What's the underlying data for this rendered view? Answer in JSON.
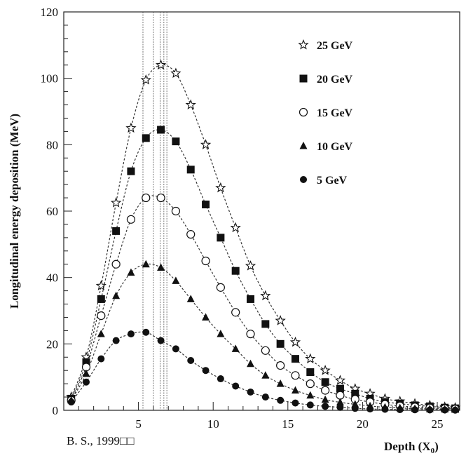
{
  "chart_data": {
    "type": "scatter",
    "title": "",
    "xlabel_main": "Depth (X",
    "xlabel_sub": "0",
    "xlabel_close": ")",
    "ylabel": "Longitudinal energy deposition (MeV)",
    "xlim": [
      0,
      26.5
    ],
    "ylim": [
      0,
      120
    ],
    "xticks": [
      5,
      10,
      15,
      20,
      25
    ],
    "yticks": [
      0,
      20,
      40,
      60,
      80,
      100,
      120
    ],
    "grid": false,
    "legend_position": "top-right",
    "credit": "B. S., 1999□□",
    "peak_lines_x": [
      5.3,
      6.0,
      6.45,
      6.7,
      6.9
    ],
    "x": [
      0.5,
      1.5,
      2.5,
      3.5,
      4.5,
      5.5,
      6.5,
      7.5,
      8.5,
      9.5,
      10.5,
      11.5,
      12.5,
      13.5,
      14.5,
      15.5,
      16.5,
      17.5,
      18.5,
      19.5,
      20.5,
      21.5,
      22.5,
      23.5,
      24.5,
      25.5,
      26.2
    ],
    "series": [
      {
        "name": "25 GeV",
        "marker": "star",
        "values": [
          4.0,
          16.0,
          37.5,
          62.5,
          85.0,
          99.5,
          104.0,
          101.5,
          92.0,
          80.0,
          67.0,
          55.0,
          43.5,
          34.5,
          27.0,
          20.5,
          15.5,
          12.0,
          9.0,
          6.5,
          5.0,
          3.5,
          2.7,
          2.0,
          1.5,
          1.0,
          0.8
        ]
      },
      {
        "name": "20 GeV",
        "marker": "square",
        "values": [
          3.5,
          14.5,
          33.5,
          54.0,
          72.0,
          82.0,
          84.5,
          81.0,
          72.5,
          62.0,
          52.0,
          42.0,
          33.5,
          26.0,
          20.0,
          15.5,
          11.5,
          8.5,
          6.5,
          5.0,
          3.5,
          2.5,
          2.0,
          1.5,
          1.2,
          0.8,
          0.6
        ]
      },
      {
        "name": "15 GeV",
        "marker": "circle-open",
        "values": [
          3.0,
          13.0,
          28.5,
          44.0,
          57.5,
          64.0,
          64.0,
          60.0,
          53.0,
          45.0,
          37.0,
          29.5,
          23.0,
          18.0,
          13.5,
          10.5,
          8.0,
          6.0,
          4.5,
          3.3,
          2.5,
          1.8,
          1.3,
          1.0,
          0.7,
          0.5,
          0.4
        ]
      },
      {
        "name": "10 GeV",
        "marker": "triangle",
        "values": [
          3.0,
          11.0,
          23.0,
          34.5,
          41.5,
          44.0,
          43.0,
          39.0,
          33.5,
          28.0,
          23.0,
          18.5,
          14.0,
          10.5,
          8.0,
          6.0,
          4.5,
          3.2,
          2.4,
          1.8,
          1.3,
          0.9,
          0.7,
          0.5,
          0.4,
          0.3,
          0.2
        ]
      },
      {
        "name": " 5 GeV",
        "marker": "circle-filled",
        "values": [
          2.5,
          8.5,
          15.5,
          21.0,
          23.0,
          23.5,
          21.0,
          18.5,
          15.0,
          12.0,
          9.5,
          7.3,
          5.5,
          4.0,
          3.0,
          2.2,
          1.6,
          1.2,
          0.9,
          0.6,
          0.4,
          0.3,
          0.2,
          0.15,
          0.1,
          0.08,
          0.05
        ]
      }
    ]
  }
}
